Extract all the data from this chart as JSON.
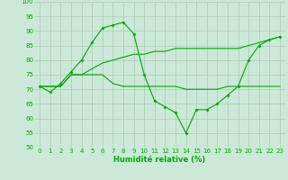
{
  "xlabel": "Humidité relative (%)",
  "background_color": "#cce8d8",
  "grid_color": "#aaccb8",
  "line_color": "#00aa00",
  "ylim": [
    50,
    100
  ],
  "xlim": [
    -0.5,
    23.5
  ],
  "yticks": [
    50,
    55,
    60,
    65,
    70,
    75,
    80,
    85,
    90,
    95,
    100
  ],
  "xticks": [
    0,
    1,
    2,
    3,
    4,
    5,
    6,
    7,
    8,
    9,
    10,
    11,
    12,
    13,
    14,
    15,
    16,
    17,
    18,
    19,
    20,
    21,
    22,
    23
  ],
  "series1": [
    71,
    69,
    72,
    76,
    80,
    86,
    91,
    92,
    93,
    89,
    75,
    66,
    64,
    62,
    55,
    63,
    63,
    65,
    68,
    71,
    80,
    85,
    87,
    88
  ],
  "series2": [
    71,
    71,
    71,
    75,
    75,
    75,
    75,
    72,
    71,
    71,
    71,
    71,
    71,
    71,
    70,
    70,
    70,
    70,
    71,
    71,
    71,
    71,
    71,
    71
  ],
  "series3": [
    71,
    71,
    71,
    75,
    75,
    77,
    79,
    80,
    81,
    82,
    82,
    83,
    83,
    84,
    84,
    84,
    84,
    84,
    84,
    84,
    85,
    86,
    87,
    88
  ],
  "xlabel_fontsize": 6,
  "tick_fontsize": 5,
  "linewidth": 0.8,
  "markersize": 2.0
}
